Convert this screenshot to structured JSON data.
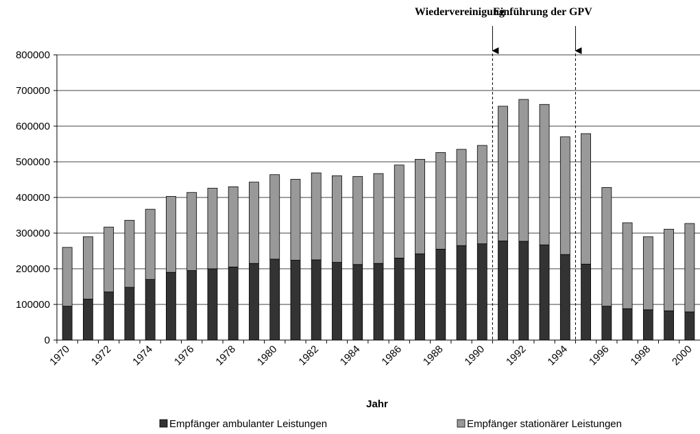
{
  "chart_data": {
    "type": "stacked-bar",
    "x_label": "Jahr",
    "categories": [
      "1970",
      null,
      "1972",
      null,
      "1974",
      null,
      "1976",
      null,
      "1978",
      null,
      "1980",
      null,
      "1982",
      null,
      "1984",
      null,
      "1986",
      null,
      "1988",
      null,
      "1990",
      null,
      "1992",
      null,
      "1994",
      null,
      "1996",
      null,
      "1998",
      null,
      "2000"
    ],
    "series": [
      {
        "name": "Empfänger ambulanter Leistungen",
        "color": "#333333",
        "values": [
          95000,
          115000,
          135000,
          148000,
          170000,
          190000,
          195000,
          200000,
          205000,
          215000,
          227000,
          224000,
          225000,
          218000,
          212000,
          215000,
          230000,
          242000,
          255000,
          265000,
          270000,
          278000,
          277000,
          267000,
          240000,
          213000,
          95000,
          88000,
          85000,
          82000,
          79000
        ]
      },
      {
        "name": "Empfänger stationärer Leistungen",
        "color": "#999999",
        "values": [
          165000,
          175000,
          182000,
          188000,
          197000,
          213000,
          219000,
          226000,
          225000,
          228000,
          237000,
          227000,
          244000,
          243000,
          247000,
          252000,
          261000,
          265000,
          271000,
          270000,
          276000,
          378000,
          398000,
          394000,
          330000,
          366000,
          333000,
          241000,
          205000,
          229000,
          248000
        ]
      }
    ],
    "ylim": [
      0,
      800000
    ],
    "yticks": [
      0,
      100000,
      200000,
      300000,
      400000,
      500000,
      600000,
      700000,
      800000
    ],
    "grid": true,
    "annotations": [
      {
        "text": "Wiedervereinigung",
        "x": 20.5
      },
      {
        "text": "Einführung der GPV",
        "x": 24.5
      }
    ]
  }
}
